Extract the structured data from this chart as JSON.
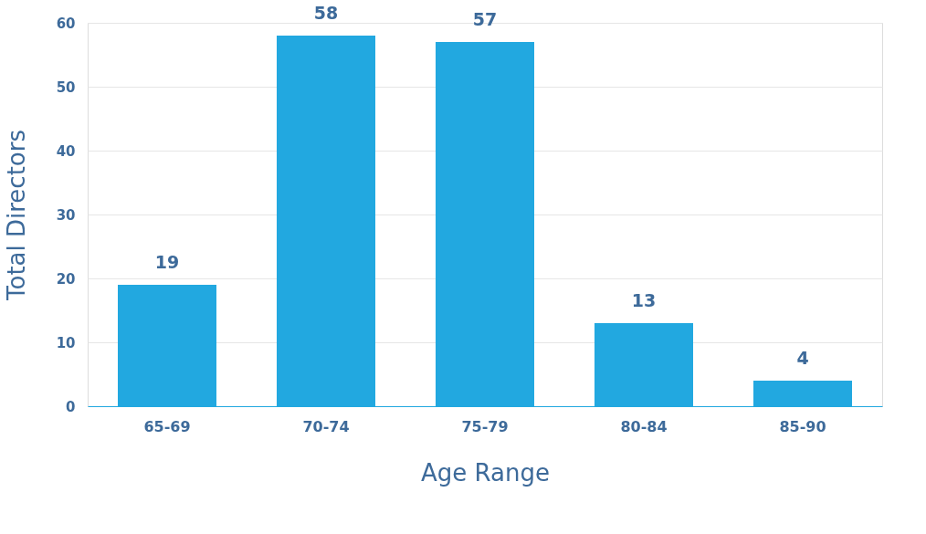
{
  "chart_data": {
    "type": "bar",
    "xlabel": "Age Range",
    "ylabel": "Total Directors",
    "categories": [
      "65-69",
      "70-74",
      "75-79",
      "80-84",
      "85-90"
    ],
    "values": [
      19,
      58,
      57,
      13,
      4
    ],
    "color": "#22a8e0",
    "ylim": [
      0,
      60
    ],
    "yticks": [
      0,
      10,
      20,
      30,
      40,
      50,
      60
    ],
    "grid": "y",
    "data_labels": true
  }
}
